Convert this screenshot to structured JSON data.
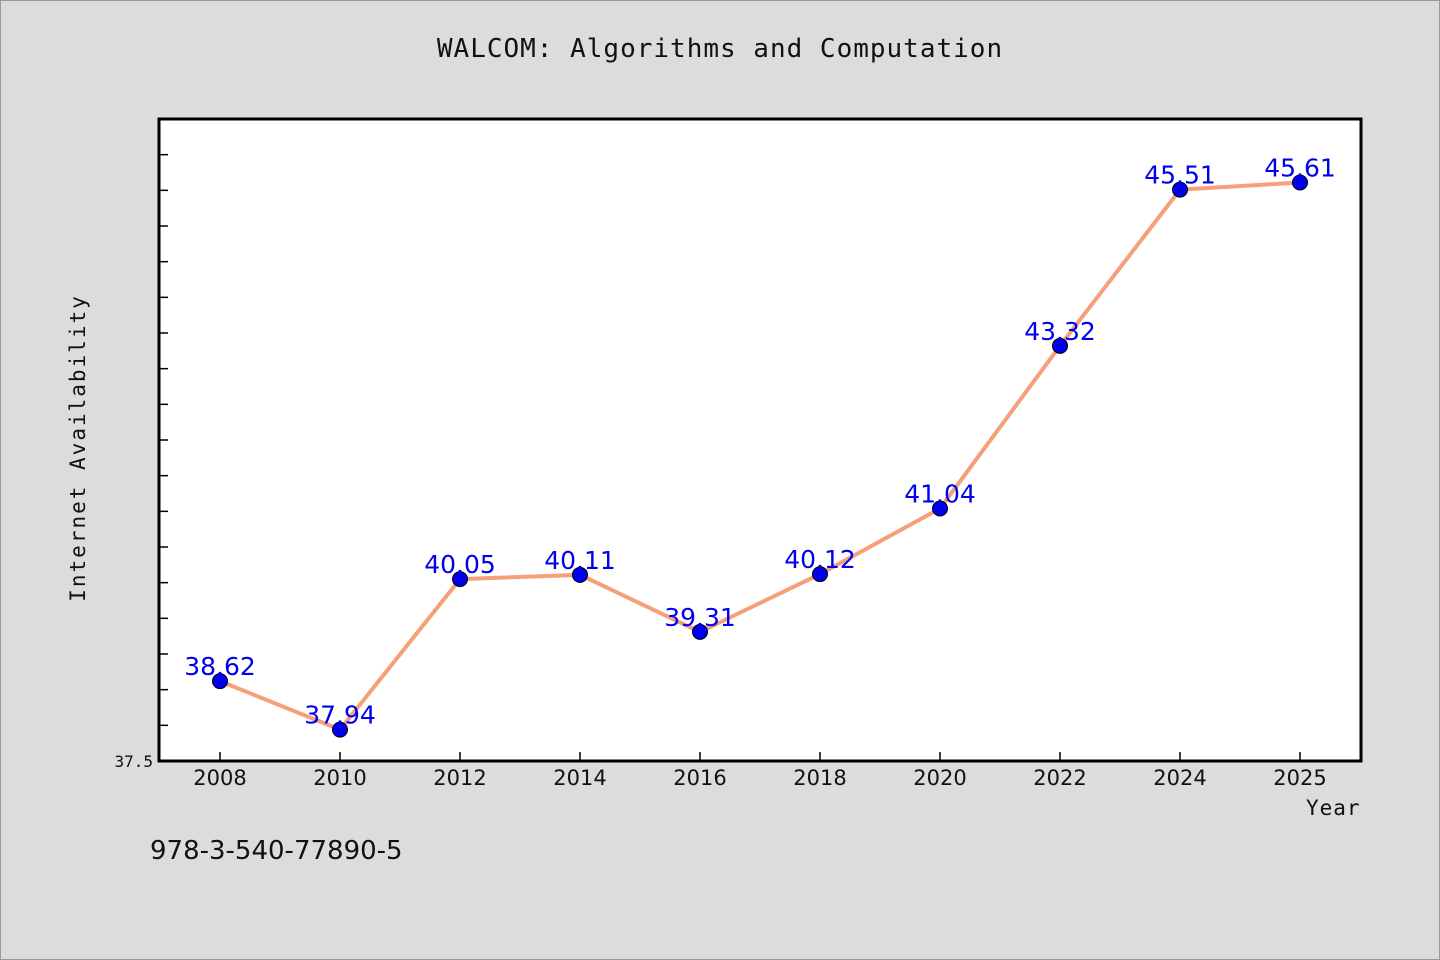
{
  "chart_data": {
    "type": "line",
    "title": "WALCOM: Algorithms and Computation",
    "xlabel": "Year",
    "ylabel": "Internet Availability",
    "categories": [
      "2008",
      "2010",
      "2012",
      "2014",
      "2016",
      "2018",
      "2020",
      "2022",
      "2024",
      "2025"
    ],
    "series": [
      {
        "values": [
          38.62,
          37.94,
          40.05,
          40.11,
          39.31,
          40.12,
          41.04,
          43.32,
          45.51,
          45.61
        ],
        "labels": [
          "38.62",
          "37.94",
          "40.05",
          "40.11",
          "39.31",
          "40.12",
          "41.04",
          "43.32",
          "45.51",
          "45.61"
        ],
        "line_color": "#f5a07a",
        "marker_color": "#0000ee"
      }
    ],
    "ylim": [
      37.5,
      46.5
    ],
    "y_tick_labels": [
      "37.5"
    ],
    "grid": false,
    "legend": "none"
  },
  "footer": {
    "isbn": "978-3-540-77890-5"
  },
  "colors": {
    "background": "#dcdcdc",
    "plot_background": "#ffffff",
    "axis": "#000000"
  }
}
